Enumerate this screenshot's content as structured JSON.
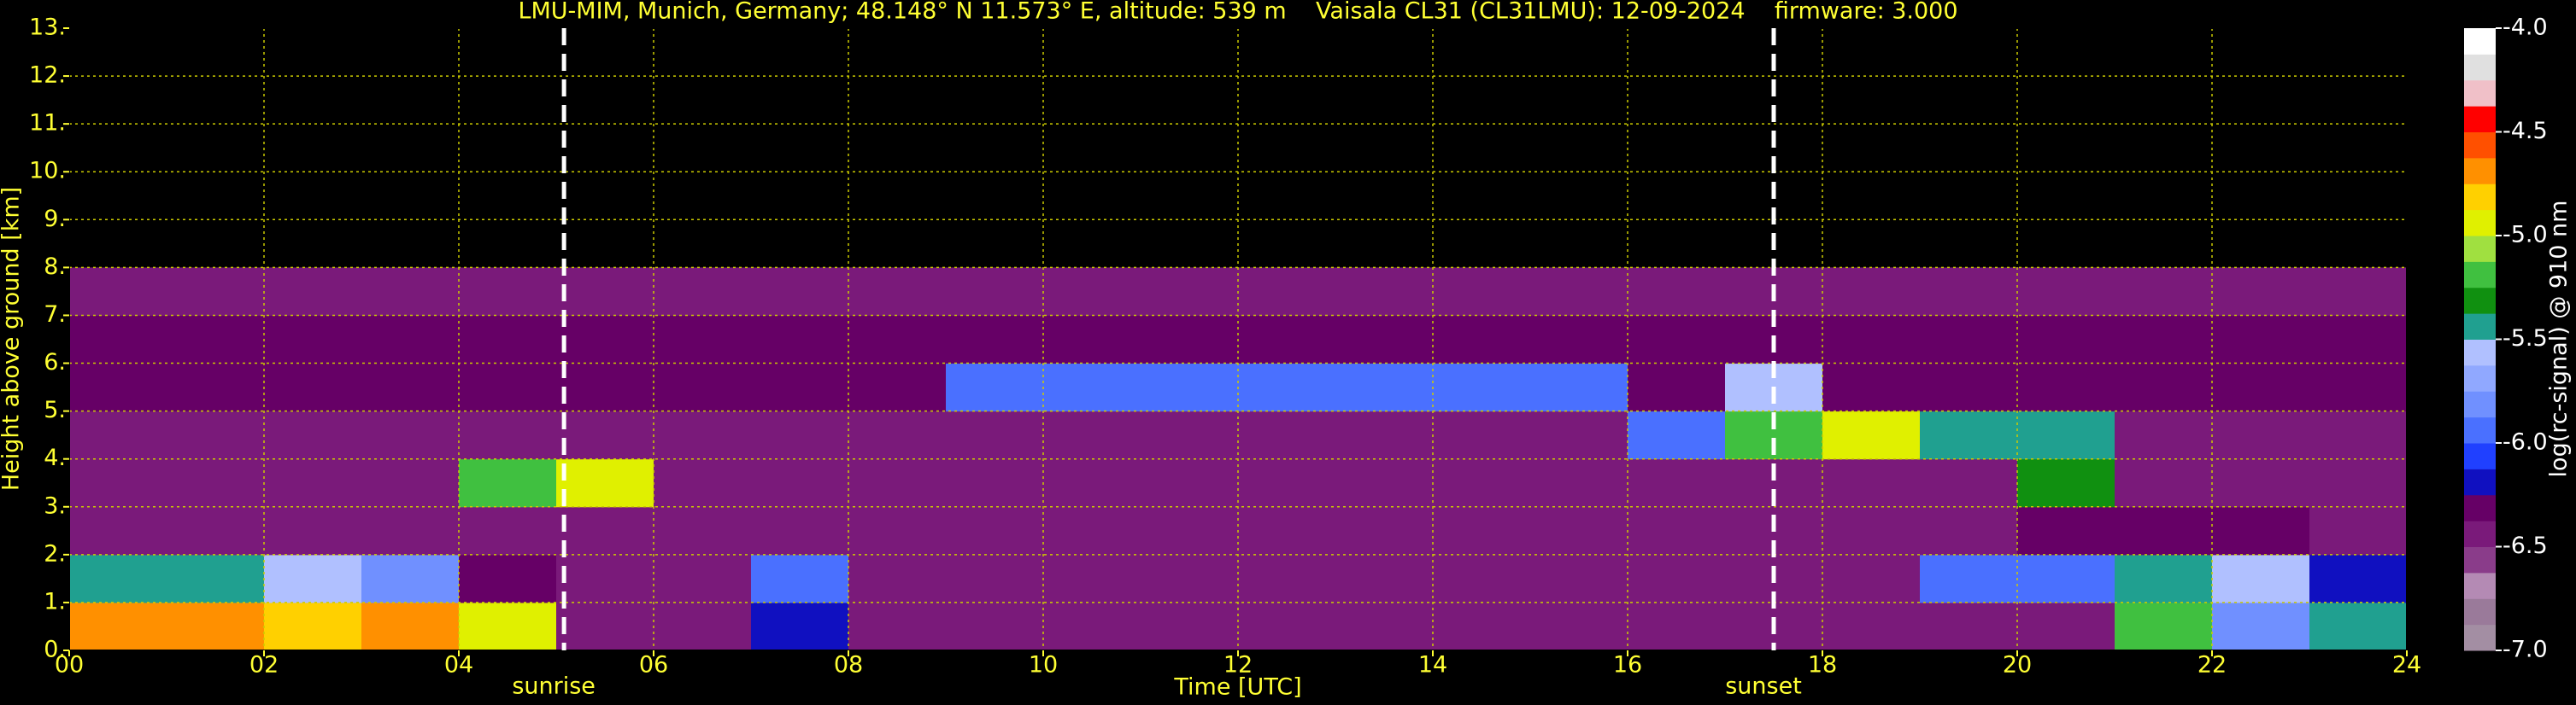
{
  "chart_data": {
    "type": "heatmap",
    "title": "LMU-MIM, Munich, Germany; 48.148° N 11.573° E, altitude: 539 m    Vaisala CL31 (CL31LMU): 12-09-2024    firmware: 3.000",
    "x_label": "Time [UTC]",
    "y_label": "Height above ground [km]",
    "colorbar_label": "log(rc-signal) @ 910 nm",
    "xlim": [
      0,
      24
    ],
    "xticks": [
      {
        "value": 0,
        "label": "00"
      },
      {
        "value": 2,
        "label": "02"
      },
      {
        "value": 4,
        "label": "04"
      },
      {
        "value": 6,
        "label": "06"
      },
      {
        "value": 8,
        "label": "08"
      },
      {
        "value": 10,
        "label": "10"
      },
      {
        "value": 12,
        "label": "12"
      },
      {
        "value": 14,
        "label": "14"
      },
      {
        "value": 16,
        "label": "16"
      },
      {
        "value": 18,
        "label": "18"
      },
      {
        "value": 20,
        "label": "20"
      },
      {
        "value": 22,
        "label": "22"
      },
      {
        "value": 24,
        "label": "24"
      }
    ],
    "ylim": [
      0,
      13
    ],
    "yticks": [
      {
        "value": 0,
        "label": "0."
      },
      {
        "value": 1,
        "label": "1."
      },
      {
        "value": 2,
        "label": "2."
      },
      {
        "value": 3,
        "label": "3."
      },
      {
        "value": 4,
        "label": "4."
      },
      {
        "value": 5,
        "label": "5."
      },
      {
        "value": 6,
        "label": "6."
      },
      {
        "value": 7,
        "label": "7."
      },
      {
        "value": 8,
        "label": "8."
      },
      {
        "value": 9,
        "label": "9."
      },
      {
        "value": 10,
        "label": "10."
      },
      {
        "value": 11,
        "label": "11."
      },
      {
        "value": 12,
        "label": "12."
      },
      {
        "value": 13,
        "label": "13."
      }
    ],
    "grid": true,
    "x": [
      0,
      1,
      2,
      3,
      4,
      5,
      6,
      7,
      8,
      9,
      10,
      11,
      12,
      13,
      14,
      15,
      16,
      17,
      18,
      19,
      20,
      21,
      22,
      23,
      24
    ],
    "y": [
      0,
      1,
      2,
      3,
      4,
      5,
      6,
      7,
      8
    ],
    "z": [
      [
        -4.7,
        -4.7,
        -4.8,
        -4.7,
        -5.0,
        -6.5,
        -6.5,
        -6.2,
        -6.5,
        -6.5,
        -6.5,
        -6.5,
        -6.5,
        -6.5,
        -6.5,
        -6.5,
        -6.5,
        -6.5,
        -6.5,
        -6.5,
        -6.4,
        -5.2,
        -5.8,
        -5.5
      ],
      [
        -5.5,
        -5.4,
        -5.6,
        -5.8,
        -6.3,
        -6.4,
        -6.4,
        -6.0,
        -6.4,
        -6.4,
        -6.4,
        -6.4,
        -6.4,
        -6.4,
        -6.4,
        -6.4,
        -6.4,
        -6.4,
        -6.4,
        -6.0,
        -6.0,
        -5.5,
        -5.6,
        -6.2
      ],
      [
        -6.5,
        -6.5,
        -6.5,
        -6.5,
        -6.5,
        -6.5,
        -6.5,
        -6.5,
        -6.5,
        -6.5,
        -6.5,
        -6.5,
        -6.5,
        -6.5,
        -6.5,
        -6.5,
        -6.5,
        -6.5,
        -6.5,
        -6.5,
        -6.3,
        -6.3,
        -6.3,
        -6.5
      ],
      [
        -6.5,
        -6.5,
        -6.5,
        -6.5,
        -5.2,
        -5.0,
        -6.5,
        -6.5,
        -6.5,
        -6.5,
        -6.5,
        -6.5,
        -6.5,
        -6.5,
        -6.5,
        -6.5,
        -6.5,
        -6.5,
        -6.5,
        -6.5,
        -5.3,
        -6.5,
        -6.5,
        -6.5
      ],
      [
        -6.4,
        -6.4,
        -6.4,
        -6.4,
        -6.4,
        -6.4,
        -6.4,
        -6.4,
        -6.4,
        -6.4,
        -6.4,
        -6.4,
        -6.4,
        -6.4,
        -6.4,
        -6.4,
        -5.9,
        -5.2,
        -5.0,
        -5.4,
        -5.5,
        -6.4,
        -6.4,
        -6.4
      ],
      [
        -6.3,
        -6.3,
        -6.3,
        -6.3,
        -6.3,
        -6.3,
        -6.3,
        -6.3,
        -6.3,
        -6.0,
        -6.0,
        -6.0,
        -6.0,
        -6.0,
        -6.0,
        -6.0,
        -6.3,
        -5.6,
        -6.3,
        -6.3,
        -6.3,
        -6.3,
        -6.3,
        -6.3
      ],
      [
        -6.3,
        -6.3,
        -6.3,
        -6.3,
        -6.3,
        -6.3,
        -6.3,
        -6.3,
        -6.3,
        -6.3,
        -6.3,
        -6.3,
        -6.3,
        -6.3,
        -6.3,
        -6.3,
        -6.3,
        -6.3,
        -6.3,
        -6.3,
        -6.3,
        -6.3,
        -6.3,
        -6.3
      ],
      [
        -6.4,
        -6.4,
        -6.4,
        -6.4,
        -6.4,
        -6.4,
        -6.4,
        -6.4,
        -6.4,
        -6.4,
        -6.4,
        -6.4,
        -6.4,
        -6.4,
        -6.4,
        -6.4,
        -6.4,
        -6.4,
        -6.4,
        -6.4,
        -6.4,
        -6.4,
        -6.4,
        -6.4
      ]
    ],
    "zlim": [
      -7,
      -4
    ],
    "zticks": [
      {
        "value": -7,
        "label": "-7.0"
      },
      {
        "value": -6.5,
        "label": "-6.5"
      },
      {
        "value": -6,
        "label": "-6.0"
      },
      {
        "value": -5.5,
        "label": "-5.5"
      },
      {
        "value": -5,
        "label": "-5.0"
      },
      {
        "value": -4.5,
        "label": "-4.5"
      },
      {
        "value": -4,
        "label": "-4.0"
      }
    ],
    "colors": [
      "#a38ea3",
      "#9a7a9a",
      "#b48ab4",
      "#8a3c8a",
      "#7a1a7a",
      "#660066",
      "#1010c0",
      "#2040ff",
      "#4a70ff",
      "#7090ff",
      "#90a8ff",
      "#b0c0ff",
      "#20a090",
      "#109010",
      "#40c040",
      "#a0e040",
      "#e0f000",
      "#ffd000",
      "#ff9000",
      "#ff5000",
      "#ff0000",
      "#f0c0c8",
      "#e0e0e0",
      "#ffffff"
    ],
    "annotations": [
      {
        "x": 5.08,
        "text": "sunrise"
      },
      {
        "x": 17.5,
        "text": "sunset"
      }
    ]
  }
}
